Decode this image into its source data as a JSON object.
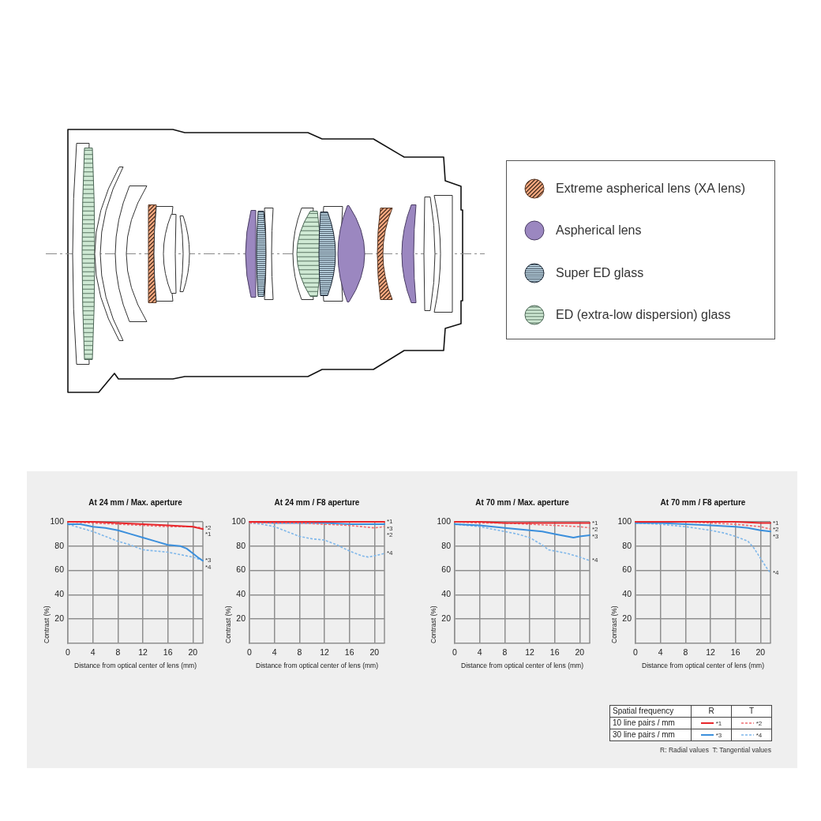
{
  "chart_data": [
    {
      "type": "other",
      "annotations": [
        "Extreme aspherical lens (XA lens)",
        "Aspherical lens",
        "Super ED glass",
        "ED (extra-low dispersion) glass"
      ]
    },
    {
      "type": "line",
      "title": "At 24 mm / Max. aperture",
      "xlabel": "Distance from optical center of lens (mm)",
      "ylabel": "Contrast (%)",
      "xlim": [
        0,
        21.6
      ],
      "xticks": [
        0,
        4,
        8,
        12,
        16,
        20
      ],
      "ylim": [
        0,
        100
      ],
      "yticks": [
        20,
        40,
        60,
        80,
        100
      ],
      "grid": true,
      "series": [
        {
          "name": "*1",
          "color": "#e8262b",
          "line_style": "solid",
          "x": [
            0,
            4,
            8,
            12,
            16,
            20,
            21.6
          ],
          "values": [
            100,
            100,
            99,
            98,
            97,
            96,
            94
          ]
        },
        {
          "name": "*2",
          "color": "#ef6f73",
          "line_style": "dashed",
          "x": [
            0,
            4,
            8,
            12,
            16,
            20,
            21.6
          ],
          "values": [
            100,
            99,
            98,
            97,
            96,
            96,
            95
          ]
        },
        {
          "name": "*3",
          "color": "#3b8fdc",
          "line_style": "solid",
          "x": [
            0,
            2,
            4,
            6,
            8,
            10,
            12,
            14,
            16,
            18,
            19,
            20,
            21,
            21.6
          ],
          "values": [
            98,
            98,
            96,
            95,
            93,
            90,
            87,
            84,
            81,
            80,
            78,
            74,
            70,
            68
          ]
        },
        {
          "name": "*4",
          "color": "#7fb7ea",
          "line_style": "dashed",
          "x": [
            0,
            2,
            4,
            6,
            8,
            10,
            12,
            14,
            16,
            18,
            20,
            21.6
          ],
          "values": [
            98,
            95,
            92,
            88,
            84,
            81,
            77,
            76,
            75,
            73,
            71,
            68
          ]
        }
      ]
    },
    {
      "type": "line",
      "title": "At 24 mm / F8 aperture",
      "xlabel": "Distance from optical center of lens (mm)",
      "ylabel": "Contrast (%)",
      "xlim": [
        0,
        21.6
      ],
      "xticks": [
        0,
        4,
        8,
        12,
        16,
        20
      ],
      "ylim": [
        0,
        100
      ],
      "yticks": [
        20,
        40,
        60,
        80,
        100
      ],
      "grid": true,
      "series": [
        {
          "name": "*1",
          "color": "#e8262b",
          "line_style": "solid",
          "x": [
            0,
            4,
            8,
            12,
            16,
            20,
            21.6
          ],
          "values": [
            100,
            100,
            100,
            100,
            100,
            100,
            100
          ]
        },
        {
          "name": "*2",
          "color": "#ef6f73",
          "line_style": "dashed",
          "x": [
            0,
            4,
            8,
            12,
            16,
            18,
            20,
            21.6
          ],
          "values": [
            99,
            99,
            99,
            98,
            97,
            96,
            95,
            96
          ]
        },
        {
          "name": "*3",
          "color": "#3b8fdc",
          "line_style": "solid",
          "x": [
            0,
            4,
            8,
            12,
            16,
            20,
            21.6
          ],
          "values": [
            100,
            99,
            99,
            99,
            98,
            98,
            98
          ]
        },
        {
          "name": "*4",
          "color": "#7fb7ea",
          "line_style": "dashed",
          "x": [
            0,
            2,
            4,
            6,
            8,
            10,
            12,
            14,
            16,
            18,
            19,
            20,
            21.6
          ],
          "values": [
            99,
            98,
            96,
            92,
            88,
            86,
            85,
            81,
            76,
            72,
            71,
            72,
            74
          ]
        }
      ]
    },
    {
      "type": "line",
      "title": "At 70 mm / Max. aperture",
      "xlabel": "Distance from optical center of lens (mm)",
      "ylabel": "Contrast (%)",
      "xlim": [
        0,
        21.6
      ],
      "xticks": [
        0,
        4,
        8,
        12,
        16,
        20
      ],
      "ylim": [
        0,
        100
      ],
      "yticks": [
        20,
        40,
        60,
        80,
        100
      ],
      "grid": true,
      "series": [
        {
          "name": "*1",
          "color": "#e8262b",
          "line_style": "solid",
          "x": [
            0,
            4,
            8,
            12,
            16,
            20,
            21.6
          ],
          "values": [
            100,
            100,
            99,
            99,
            99,
            99,
            99
          ]
        },
        {
          "name": "*2",
          "color": "#ef6f73",
          "line_style": "dashed",
          "x": [
            0,
            4,
            8,
            12,
            16,
            20,
            21.6
          ],
          "values": [
            100,
            99,
            99,
            98,
            97,
            96,
            95
          ]
        },
        {
          "name": "*3",
          "color": "#3b8fdc",
          "line_style": "solid",
          "x": [
            0,
            4,
            8,
            12,
            14,
            16,
            18,
            19,
            20,
            21.6
          ],
          "values": [
            98,
            97,
            95,
            93,
            92,
            90,
            88,
            87,
            88,
            89
          ]
        },
        {
          "name": "*4",
          "color": "#7fb7ea",
          "line_style": "dashed",
          "x": [
            0,
            2,
            4,
            6,
            8,
            10,
            12,
            14,
            15,
            16,
            18,
            20,
            21.6
          ],
          "values": [
            98,
            97,
            96,
            94,
            92,
            90,
            87,
            81,
            77,
            76,
            74,
            71,
            68
          ]
        }
      ]
    },
    {
      "type": "line",
      "title": "At 70 mm / F8 aperture",
      "xlabel": "Distance from optical center of lens (mm)",
      "ylabel": "Contrast (%)",
      "xlim": [
        0,
        21.6
      ],
      "xticks": [
        0,
        4,
        8,
        12,
        16,
        20
      ],
      "ylim": [
        0,
        100
      ],
      "yticks": [
        20,
        40,
        60,
        80,
        100
      ],
      "grid": true,
      "series": [
        {
          "name": "*1",
          "color": "#e8262b",
          "line_style": "solid",
          "x": [
            0,
            4,
            8,
            12,
            16,
            20,
            21.6
          ],
          "values": [
            100,
            100,
            100,
            100,
            100,
            99,
            99
          ]
        },
        {
          "name": "*2",
          "color": "#ef6f73",
          "line_style": "dashed",
          "x": [
            0,
            8,
            12,
            16,
            18,
            20,
            21.6
          ],
          "values": [
            100,
            100,
            99,
            98,
            97,
            96,
            94
          ]
        },
        {
          "name": "*3",
          "color": "#3b8fdc",
          "line_style": "solid",
          "x": [
            0,
            4,
            8,
            12,
            16,
            18,
            20,
            21.6
          ],
          "values": [
            99,
            99,
            98,
            97,
            96,
            95,
            93,
            92
          ]
        },
        {
          "name": "*4",
          "color": "#7fb7ea",
          "line_style": "dashed",
          "x": [
            0,
            4,
            8,
            12,
            14,
            16,
            17,
            18,
            19,
            20,
            21,
            21.6
          ],
          "values": [
            99,
            98,
            96,
            93,
            91,
            88,
            86,
            84,
            78,
            70,
            62,
            58
          ]
        }
      ]
    },
    {
      "type": "other",
      "annotations": [
        "Spatial frequency",
        "R",
        "T",
        "10 line pairs / mm",
        "*1",
        "*2",
        "30 line pairs / mm",
        "*3",
        "*4",
        "R: Radial values  T: Tangential values"
      ]
    }
  ]
}
